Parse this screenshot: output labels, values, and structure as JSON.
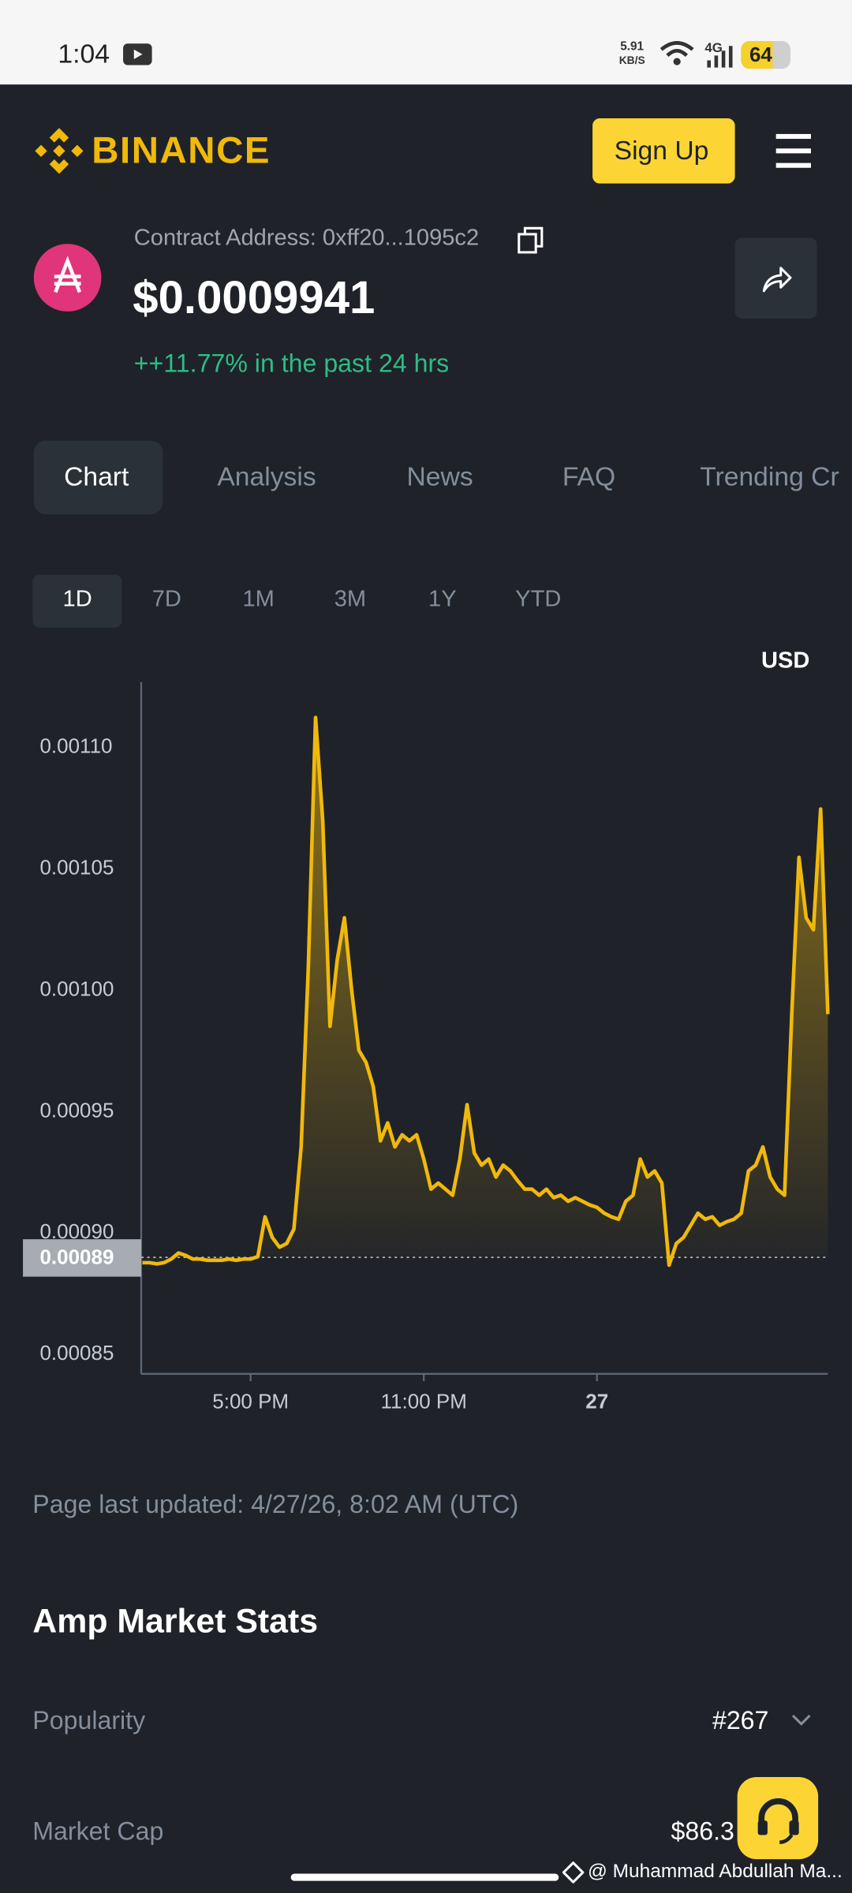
{
  "status_bar": {
    "time": "1:04",
    "net_speed": "5.91",
    "net_unit": "KB/S",
    "network": "4G",
    "battery": "64"
  },
  "header": {
    "brand": "BINANCE",
    "sign_up": "Sign Up"
  },
  "token": {
    "contract": "Contract Address: 0xff20...1095c2",
    "price": "$0.0009941",
    "change": "++11.77% in the past 24 hrs"
  },
  "tabs": [
    "Chart",
    "Analysis",
    "News",
    "FAQ",
    "Trending Cr"
  ],
  "periods": [
    "1D",
    "7D",
    "1M",
    "3M",
    "1Y",
    "YTD"
  ],
  "chart_data": {
    "type": "line",
    "currency": "USD",
    "color": "#f0b90b",
    "categories": [
      null,
      null,
      null,
      null,
      null,
      null,
      null,
      null,
      null,
      null,
      null,
      null,
      null,
      null,
      null,
      "5:00 PM",
      null,
      null,
      null,
      null,
      null,
      null,
      null,
      null,
      null,
      null,
      null,
      null,
      null,
      null,
      null,
      null,
      null,
      null,
      null,
      null,
      null,
      null,
      null,
      "11:00 PM",
      null,
      null,
      null,
      null,
      null,
      null,
      null,
      null,
      null,
      null,
      null,
      null,
      null,
      null,
      null,
      null,
      null,
      null,
      null,
      null,
      null,
      null,
      null,
      "27",
      null,
      null,
      null,
      null,
      null,
      null,
      null,
      null,
      null,
      null,
      null,
      null,
      null,
      null,
      null,
      null,
      null,
      null,
      null,
      null,
      null,
      null,
      null,
      null,
      null,
      null,
      null,
      null,
      null,
      null,
      null,
      null
    ],
    "values": [
      0.0008878,
      0.0008878,
      0.0008873,
      0.0008878,
      0.0008893,
      0.0008918,
      0.0008908,
      0.0008893,
      0.0008893,
      0.0008888,
      0.0008888,
      0.0008888,
      0.0008893,
      0.0008888,
      0.0008893,
      0.0008893,
      0.0008903,
      0.0009067,
      0.0008982,
      0.0008942,
      0.0008957,
      0.0009017,
      0.0009355,
      0.00101,
      0.0011124,
      0.0010697,
      0.0009852,
      0.0010125,
      0.0010299,
      0.0010001,
      0.0009753,
      0.0009703,
      0.0009603,
      0.000938,
      0.0009454,
      0.0009355,
      0.0009405,
      0.000938,
      0.0009405,
      0.0009305,
      0.0009181,
      0.0009206,
      0.0009181,
      0.0009156,
      0.0009305,
      0.0009529,
      0.000933,
      0.000928,
      0.0009305,
      0.0009231,
      0.000928,
      0.0009256,
      0.0009216,
      0.0009181,
      0.0009181,
      0.0009156,
      0.0009181,
      0.0009146,
      0.0009156,
      0.0009131,
      0.0009146,
      0.0009131,
      0.0009116,
      0.0009106,
      0.0009082,
      0.0009067,
      0.0009057,
      0.0009131,
      0.0009156,
      0.0009305,
      0.0009231,
      0.0009256,
      0.0009206,
      0.0008868,
      0.0008957,
      0.0008982,
      0.0009032,
      0.0009082,
      0.0009057,
      0.0009067,
      0.0009032,
      0.0009047,
      0.0009057,
      0.0009082,
      0.0009256,
      0.000928,
      0.0009355,
      0.0009231,
      0.0009181,
      0.0009156,
      0.0009902,
      0.0010548,
      0.0010299,
      0.001025,
      0.0010747,
      0.0009902
    ],
    "ylim": [
      0.000842,
      0.001127
    ],
    "yticks": [
      0.00085,
      {
        "value": 0.0009,
        "label": "0.00090"
      },
      0.00095,
      {
        "value": 0.001,
        "label": "0.00100"
      },
      0.00105,
      {
        "value": 0.0011,
        "label": "0.00110"
      }
    ],
    "baseline": 0.00089
  },
  "updated": "Page last updated: 4/27/26, 8:02 AM (UTC)",
  "stats": {
    "title": "Amp Market Stats",
    "rows": [
      {
        "label": "Popularity",
        "value": "#267"
      },
      {
        "label": "Market Cap",
        "value": "$86.3"
      }
    ]
  },
  "watermark": "@ Muhammad Abdullah Ma..."
}
